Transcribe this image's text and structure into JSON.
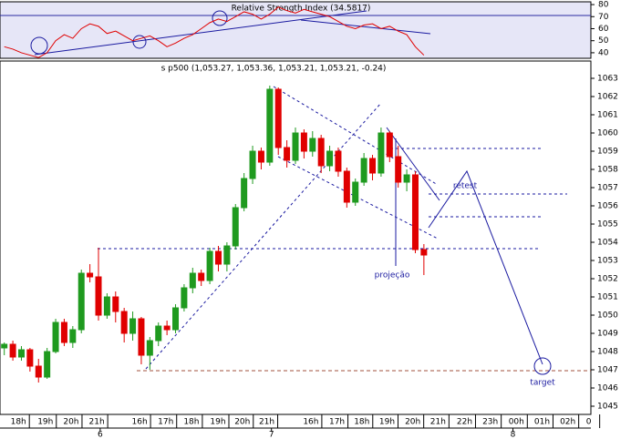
{
  "chart_data": [
    {
      "type": "line",
      "title": "Relative Strength Index (34.5817)",
      "color": "#e00000",
      "x": [
        1,
        3,
        5,
        7,
        9,
        11,
        13,
        15,
        17,
        19,
        21,
        23,
        25,
        27,
        29,
        31,
        33,
        35,
        37,
        39,
        41,
        43,
        45,
        47,
        49,
        51,
        53,
        55,
        57,
        59,
        61,
        63,
        65,
        67,
        69,
        71,
        73,
        75,
        77,
        79,
        81,
        83,
        85,
        87,
        89,
        91,
        93,
        95,
        97,
        99
      ],
      "values": [
        45,
        43,
        40,
        38,
        36,
        40,
        50,
        55,
        52,
        60,
        64,
        62,
        56,
        58,
        54,
        50,
        52,
        54,
        50,
        45,
        48,
        52,
        55,
        60,
        65,
        68,
        66,
        70,
        74,
        72,
        68,
        72,
        78,
        75,
        73,
        76,
        74,
        72,
        70,
        66,
        62,
        60,
        63,
        64,
        60,
        62,
        58,
        55,
        45,
        38
      ],
      "xlim": [
        0,
        138
      ],
      "ylim": [
        35.4,
        82.3
      ],
      "yticks": [
        40,
        50,
        60,
        70,
        80
      ]
    },
    {
      "type": "candlestick",
      "title": "s p500 (1,053.27, 1,053.36, 1,053.21, 1,053.21, -0.24)",
      "up_color": "#1f9a1f",
      "down_color": "#e00000",
      "x": [
        1,
        3,
        5,
        7,
        9,
        11,
        13,
        15,
        17,
        19,
        21,
        23,
        25,
        27,
        29,
        31,
        33,
        35,
        37,
        39,
        41,
        43,
        45,
        47,
        49,
        51,
        53,
        55,
        57,
        59,
        61,
        63,
        65,
        67,
        69,
        71,
        73,
        75,
        77,
        79,
        81,
        83,
        85,
        87,
        89,
        91,
        93,
        95,
        97,
        99
      ],
      "open": [
        1048.2,
        1048.4,
        1047.7,
        1048.1,
        1047.2,
        1046.6,
        1048.0,
        1049.6,
        1048.5,
        1049.2,
        1052.3,
        1052.1,
        1050.0,
        1051.0,
        1050.2,
        1049.0,
        1049.8,
        1047.8,
        1048.6,
        1049.4,
        1049.2,
        1050.4,
        1051.5,
        1052.3,
        1051.9,
        1053.5,
        1052.8,
        1053.8,
        1055.9,
        1057.5,
        1059.0,
        1058.4,
        1062.4,
        1059.2,
        1058.5,
        1060.0,
        1059.0,
        1059.7,
        1058.2,
        1059.0,
        1057.9,
        1056.2,
        1057.3,
        1058.6,
        1057.8,
        1060.0,
        1058.7,
        1057.3,
        1057.7,
        1053.6
      ],
      "high": [
        1048.5,
        1048.6,
        1048.3,
        1048.2,
        1047.6,
        1048.2,
        1049.8,
        1049.8,
        1049.4,
        1052.5,
        1052.8,
        1053.7,
        1051.2,
        1051.3,
        1050.4,
        1050.2,
        1049.9,
        1048.8,
        1049.6,
        1049.7,
        1050.6,
        1051.7,
        1052.6,
        1052.5,
        1053.7,
        1053.8,
        1054.0,
        1056.1,
        1057.8,
        1059.3,
        1059.2,
        1062.6,
        1062.5,
        1059.6,
        1060.3,
        1060.2,
        1060.1,
        1059.9,
        1059.3,
        1059.2,
        1058.1,
        1057.5,
        1058.9,
        1058.8,
        1060.3,
        1060.1,
        1059.3,
        1058.0,
        1057.9,
        1053.9
      ],
      "low": [
        1047.8,
        1047.5,
        1047.5,
        1046.9,
        1046.3,
        1046.5,
        1047.9,
        1048.3,
        1048.2,
        1049.0,
        1051.8,
        1049.7,
        1049.8,
        1049.6,
        1048.5,
        1048.6,
        1047.3,
        1047.0,
        1048.3,
        1048.9,
        1049.0,
        1050.2,
        1051.2,
        1051.6,
        1051.7,
        1052.4,
        1052.4,
        1053.6,
        1055.7,
        1057.2,
        1058.0,
        1058.2,
        1058.8,
        1058.1,
        1058.3,
        1058.6,
        1058.7,
        1057.8,
        1057.9,
        1057.6,
        1055.9,
        1056.0,
        1057.1,
        1057.4,
        1057.6,
        1058.4,
        1057.0,
        1056.8,
        1053.4,
        1052.2
      ],
      "close": [
        1048.4,
        1047.7,
        1048.1,
        1047.2,
        1046.6,
        1048.0,
        1049.6,
        1048.5,
        1049.2,
        1052.3,
        1052.1,
        1050.0,
        1051.0,
        1050.2,
        1049.0,
        1049.8,
        1047.8,
        1048.6,
        1049.4,
        1049.2,
        1050.4,
        1051.5,
        1052.3,
        1051.9,
        1053.5,
        1052.8,
        1053.8,
        1055.9,
        1057.5,
        1059.0,
        1058.4,
        1062.4,
        1059.2,
        1058.5,
        1060.0,
        1059.0,
        1059.7,
        1058.2,
        1059.0,
        1057.9,
        1056.2,
        1057.3,
        1058.6,
        1057.8,
        1060.0,
        1058.7,
        1057.3,
        1057.7,
        1053.6,
        1053.3
      ],
      "xlim": [
        0,
        138
      ],
      "ylim": [
        1044.55,
        1063.95
      ],
      "yticks": [
        1045,
        1046,
        1047,
        1048,
        1049,
        1050,
        1051,
        1052,
        1053,
        1054,
        1055,
        1056,
        1057,
        1058,
        1059,
        1060,
        1061,
        1062,
        1063
      ],
      "xticks": [
        {
          "value": 4.3,
          "label": "18h"
        },
        {
          "value": 10.6,
          "label": "19h"
        },
        {
          "value": 16.6,
          "label": "20h"
        },
        {
          "value": 22.6,
          "label": "21h"
        },
        {
          "value": 32.6,
          "label": "16h"
        },
        {
          "value": 38.7,
          "label": "17h"
        },
        {
          "value": 44.7,
          "label": "18h"
        },
        {
          "value": 50.9,
          "label": "19h"
        },
        {
          "value": 56.6,
          "label": "20h"
        },
        {
          "value": 62.3,
          "label": "21h"
        },
        {
          "value": 72.6,
          "label": "16h"
        },
        {
          "value": 78.7,
          "label": "17h"
        },
        {
          "value": 84.5,
          "label": "18h"
        },
        {
          "value": 90.4,
          "label": "19h"
        },
        {
          "value": 96.4,
          "label": "20h"
        },
        {
          "value": 102.3,
          "label": "21h"
        },
        {
          "value": 108.5,
          "label": "22h"
        },
        {
          "value": 114.5,
          "label": "23h"
        },
        {
          "value": 120.6,
          "label": "00h"
        },
        {
          "value": 126.6,
          "label": "01h"
        },
        {
          "value": 132.6,
          "label": "02h"
        },
        {
          "value": 137.5,
          "label": "0"
        }
      ],
      "day_ticks": [
        {
          "value": 23.4,
          "label": "6"
        },
        {
          "value": 63.4,
          "label": "7"
        },
        {
          "value": 119.8,
          "label": "8"
        }
      ],
      "annotations": [
        "retest",
        "projeção",
        "target"
      ]
    }
  ]
}
